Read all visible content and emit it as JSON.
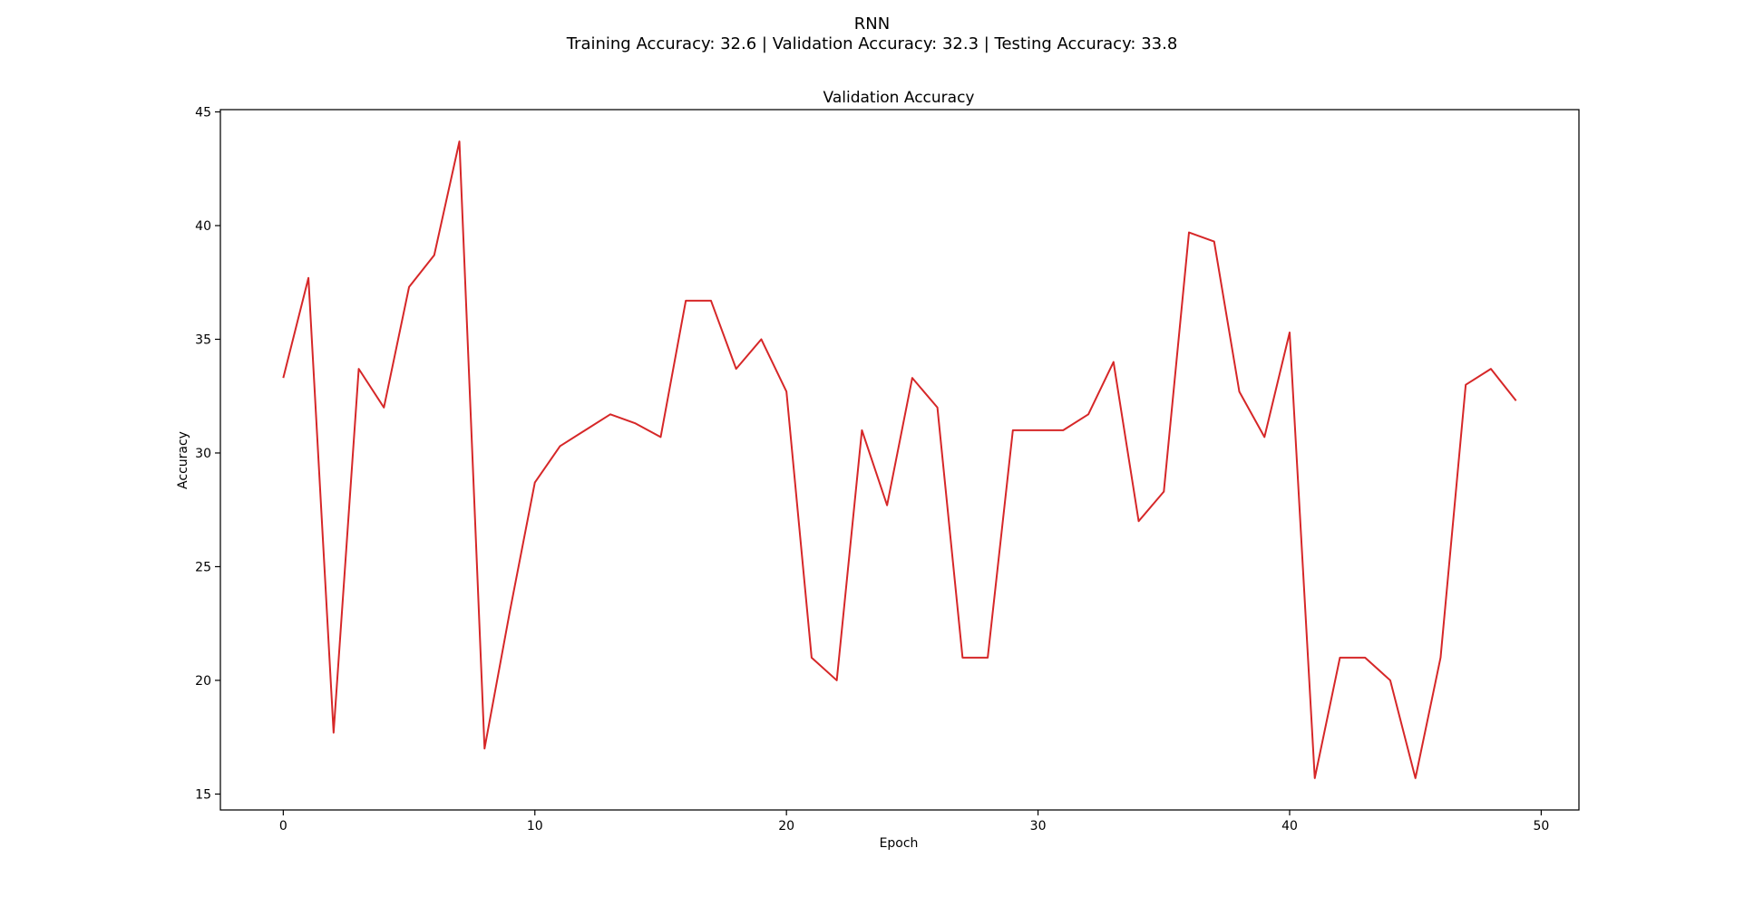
{
  "figure": {
    "title": "RNN",
    "subtitle": "Training Accuracy: 32.6 | Validation Accuracy: 32.3 | Testing Accuracy: 33.8"
  },
  "chart_data": {
    "type": "line",
    "title": "Validation Accuracy",
    "xlabel": "Epoch",
    "ylabel": "Accuracy",
    "xlim": [
      -2.5,
      51.5
    ],
    "ylim": [
      14.3,
      45.1
    ],
    "xticks": [
      0,
      10,
      20,
      30,
      40,
      50
    ],
    "yticks": [
      15,
      20,
      25,
      30,
      35,
      40,
      45
    ],
    "grid": false,
    "series": [
      {
        "color": "#d62728",
        "x": [
          0,
          1,
          2,
          3,
          4,
          5,
          6,
          7,
          8,
          9,
          10,
          11,
          12,
          13,
          14,
          15,
          16,
          17,
          18,
          19,
          20,
          21,
          22,
          23,
          24,
          25,
          26,
          27,
          28,
          29,
          30,
          31,
          32,
          33,
          34,
          35,
          36,
          37,
          38,
          39,
          40,
          41,
          42,
          43,
          44,
          45,
          46,
          47,
          48,
          49
        ],
        "y": [
          33.3,
          37.7,
          17.7,
          33.7,
          32.0,
          37.3,
          38.7,
          43.7,
          17.0,
          23.0,
          28.7,
          30.3,
          31.0,
          31.7,
          31.3,
          30.7,
          36.7,
          36.7,
          33.7,
          35.0,
          32.7,
          21.0,
          20.0,
          31.0,
          27.7,
          33.3,
          32.0,
          21.0,
          21.0,
          31.0,
          31.0,
          31.0,
          31.7,
          34.0,
          27.0,
          28.3,
          39.7,
          39.3,
          32.7,
          30.7,
          35.3,
          15.7,
          21.0,
          21.0,
          20.0,
          15.7,
          21.0,
          33.0,
          33.7,
          32.3
        ]
      }
    ]
  }
}
